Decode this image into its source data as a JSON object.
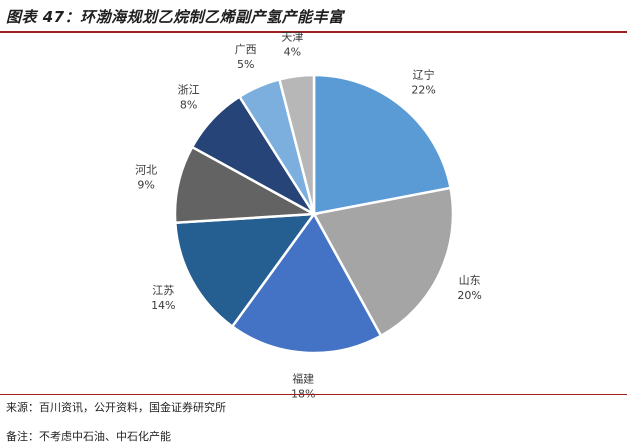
{
  "header": {
    "title": "图表 47：环渤海规划乙烷制乙烯副产氢产能丰富"
  },
  "chart_data": {
    "type": "pie",
    "categories": [
      "辽宁",
      "山东",
      "福建",
      "江苏",
      "河北",
      "浙江",
      "广西",
      "天津"
    ],
    "values": [
      22,
      20,
      18,
      14,
      9,
      8,
      5,
      4
    ],
    "value_labels": [
      "22%",
      "20%",
      "18%",
      "14%",
      "9%",
      "8%",
      "5%",
      "4%"
    ],
    "colors": [
      "#5b9bd5",
      "#a5a5a5",
      "#4472c4",
      "#255e91",
      "#636363",
      "#264478",
      "#7cafdd",
      "#b7b7b7"
    ],
    "start": "12 o'clock",
    "direction": "clockwise",
    "legend": "none",
    "title": "",
    "xlabel": "",
    "ylabel": ""
  },
  "footer": {
    "source": "来源：百川资讯，公开资料，国金证券研究所",
    "remark": "备注：不考虑中石油、中石化产能"
  }
}
